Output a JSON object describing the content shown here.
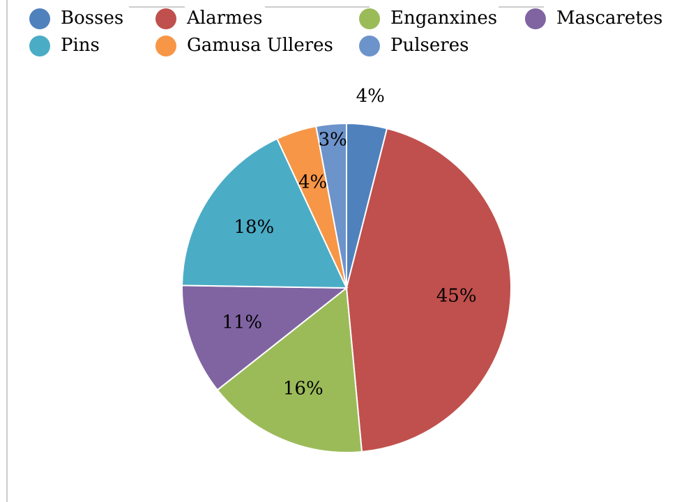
{
  "chart_data": {
    "type": "pie",
    "categories": [
      "Bosses",
      "Alarmes",
      "Enganxines",
      "Mascaretes",
      "Pins",
      "Gamusa Ulleres",
      "Pulseres"
    ],
    "values": [
      4,
      45,
      16,
      11,
      18,
      4,
      3
    ],
    "value_labels": [
      "4%",
      "45%",
      "16%",
      "11%",
      "18%",
      "4%",
      "3%"
    ],
    "colors": [
      "#4f81bd",
      "#c0504d",
      "#9bbb59",
      "#8064a2",
      "#4bacc6",
      "#f79646",
      "#6d93cb"
    ],
    "legend": "top"
  }
}
